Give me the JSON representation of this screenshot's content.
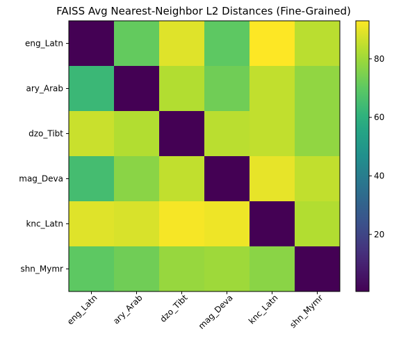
{
  "chart_data": {
    "type": "heatmap",
    "title": "FAISS Avg Nearest-Neighbor L2 Distances (Fine-Grained)",
    "xlabel": "",
    "ylabel": "",
    "x_labels": [
      "eng_Latn",
      "ary_Arab",
      "dzo_Tibt",
      "mag_Deva",
      "knc_Latn",
      "shn_Mymr"
    ],
    "y_labels": [
      "eng_Latn",
      "ary_Arab",
      "dzo_Tibt",
      "mag_Deva",
      "knc_Latn",
      "shn_Mymr"
    ],
    "values": [
      [
        0.5,
        71,
        89,
        70,
        93,
        84
      ],
      [
        63,
        0.5,
        83,
        73,
        85,
        78
      ],
      [
        86,
        83,
        0.5,
        84,
        85,
        78
      ],
      [
        65,
        77,
        85,
        0.5,
        90,
        85
      ],
      [
        89,
        88,
        92,
        91,
        0.5,
        83
      ],
      [
        70,
        73,
        79,
        80,
        77,
        0.5
      ]
    ],
    "colormap": "viridis",
    "vmin": 0.5,
    "vmax": 93,
    "colorbar_ticks": [
      20,
      40,
      60,
      80
    ],
    "grid": false
  }
}
